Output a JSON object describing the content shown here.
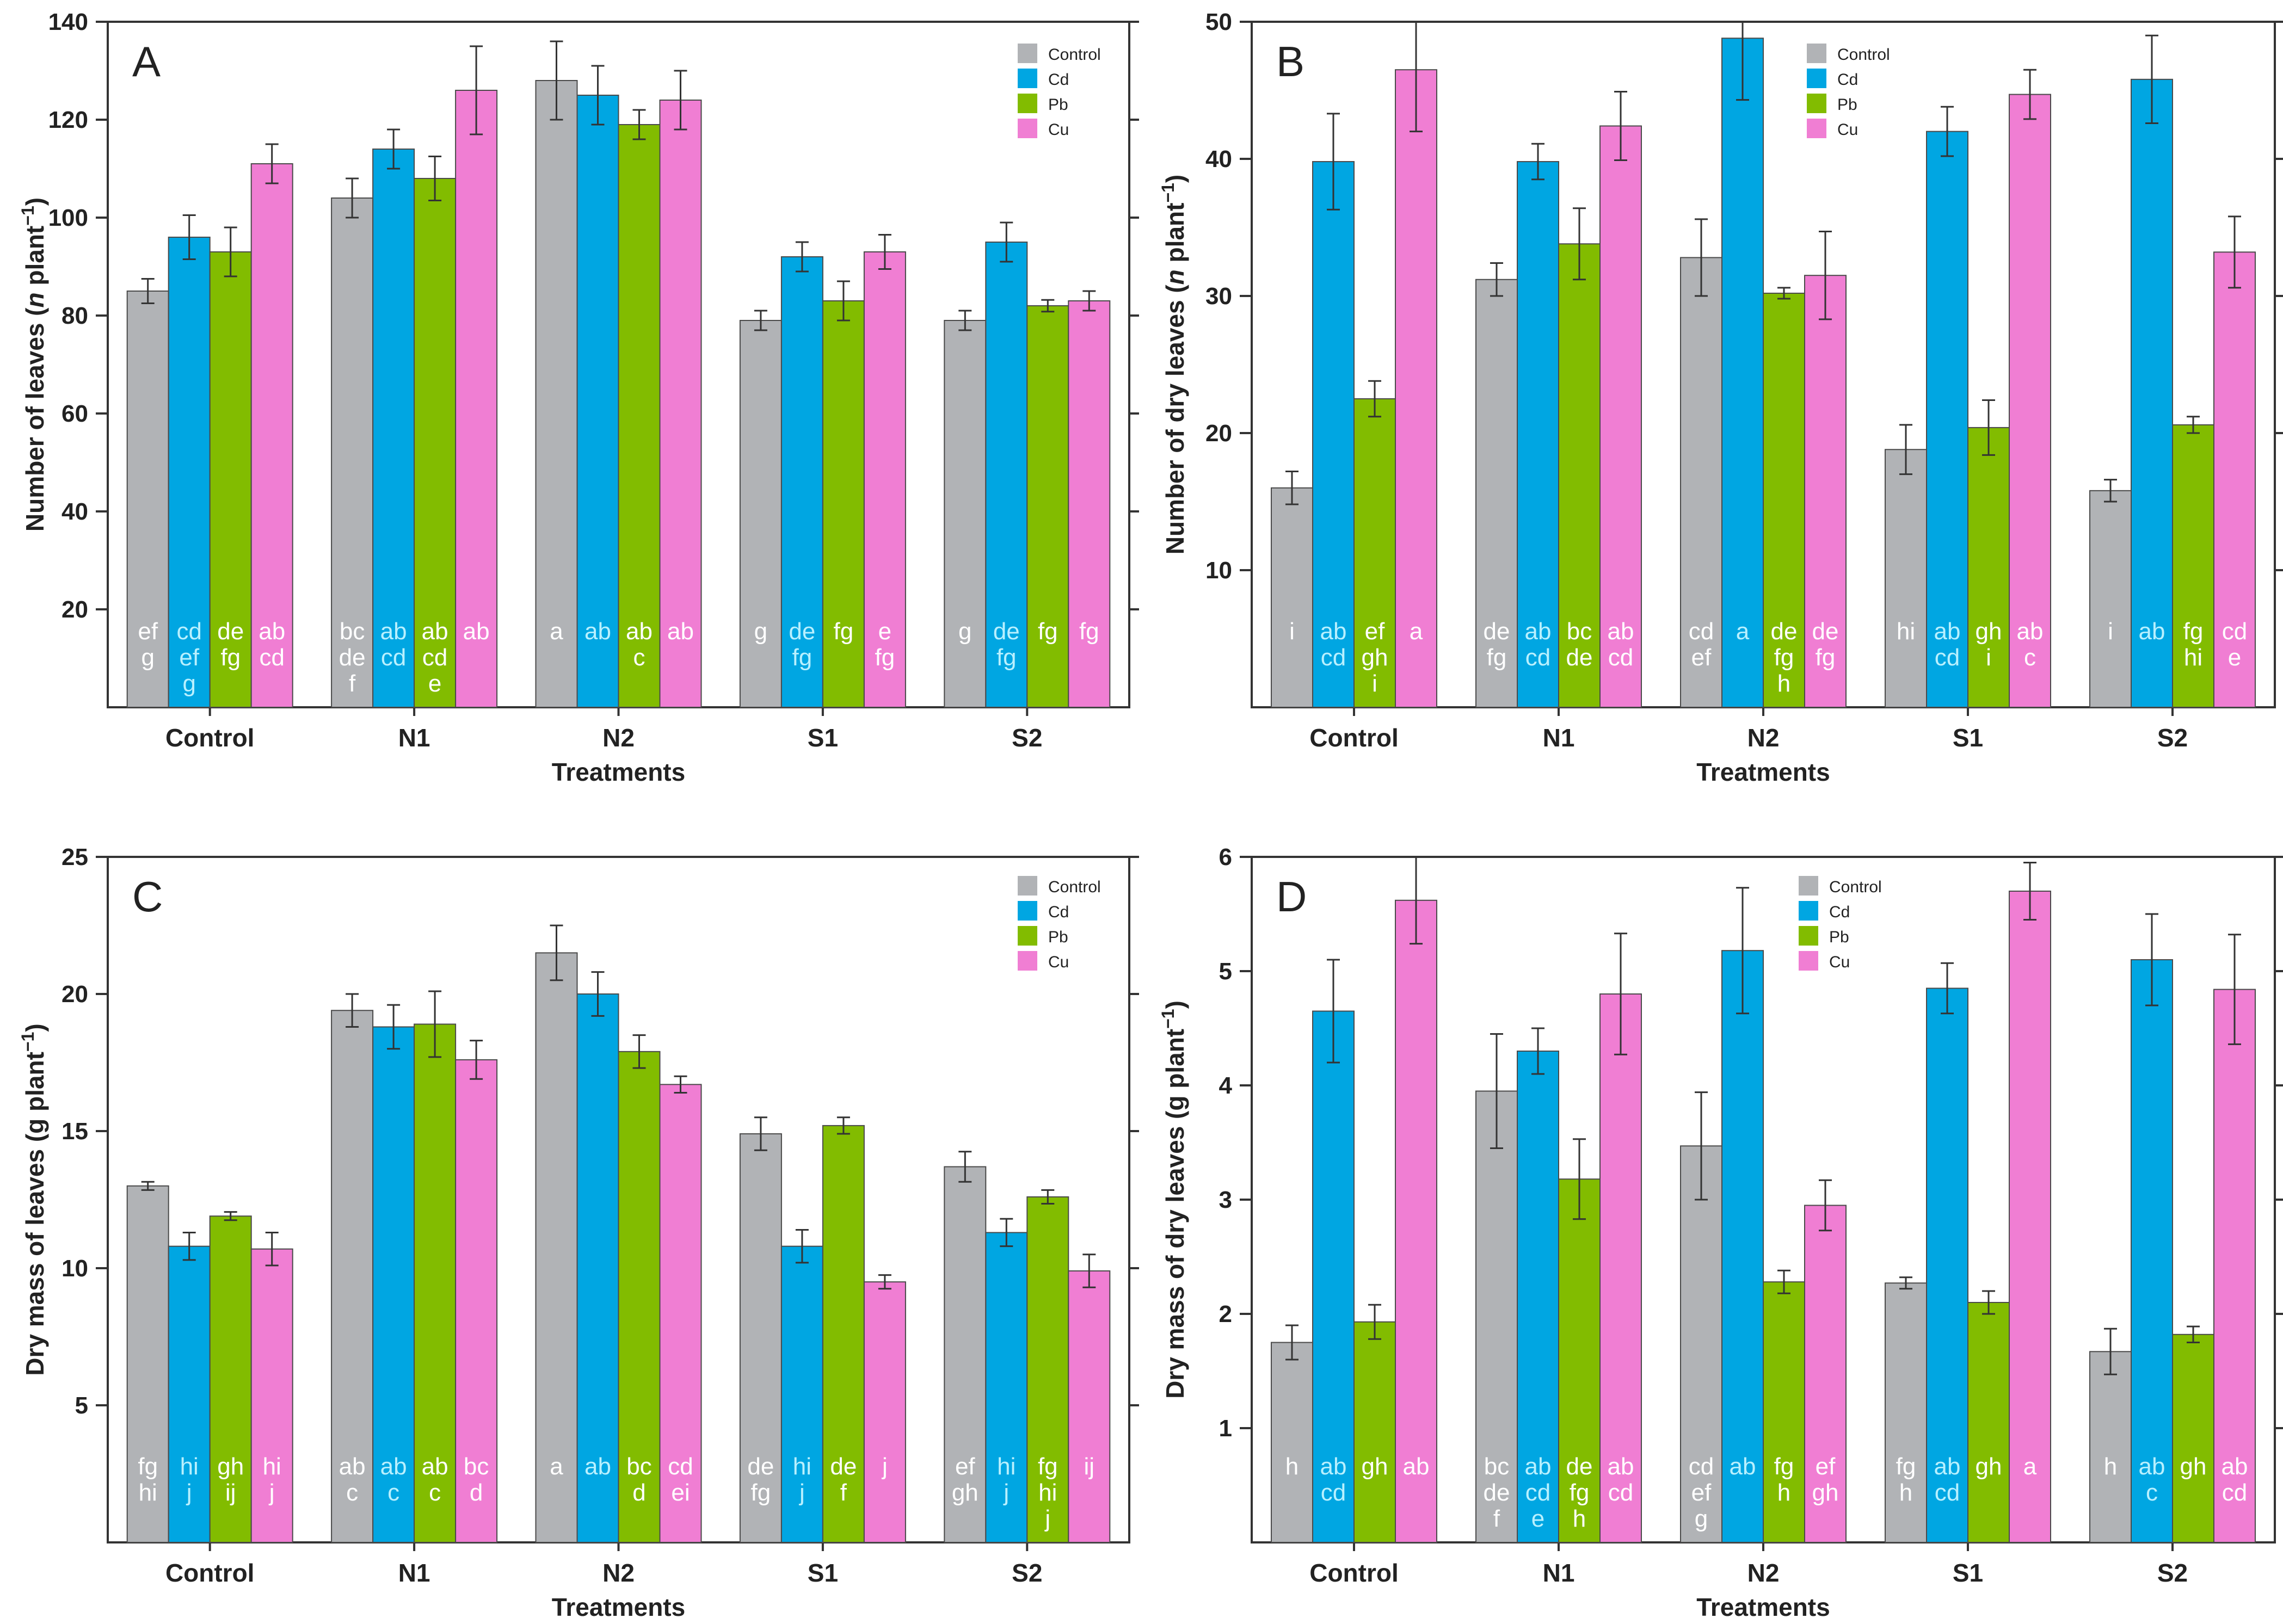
{
  "colors": {
    "Control": "#b1b3b6",
    "Cd": "#00a6e2",
    "Pb": "#82bc00",
    "Cu": "#f07ed3",
    "axis": "#333333"
  },
  "chart_data": [
    {
      "panel": "A",
      "type": "bar",
      "xlabel": "Treatments",
      "ylabel": [
        "Number of leaves (",
        "n",
        " plant",
        "−1",
        ")"
      ],
      "ylim": [
        0,
        140
      ],
      "yticks": [
        20,
        40,
        60,
        80,
        100,
        120,
        140
      ],
      "categories": [
        "Control",
        "N1",
        "N2",
        "S1",
        "S2"
      ],
      "legend": [
        "Control",
        "Cd",
        "Pb",
        "Cu"
      ],
      "series": [
        {
          "name": "Control",
          "values": [
            85,
            104,
            128,
            79,
            79
          ],
          "errors": [
            2.5,
            4,
            8,
            2,
            2
          ],
          "labels": [
            [
              "ef",
              "g"
            ],
            [
              "bc",
              "de",
              "f"
            ],
            [
              "a"
            ],
            [
              "g"
            ],
            [
              "g"
            ]
          ]
        },
        {
          "name": "Cd",
          "values": [
            96,
            114,
            125,
            92,
            95
          ],
          "errors": [
            4.5,
            4,
            6,
            3,
            4
          ],
          "labels": [
            [
              "cd",
              "ef",
              "g"
            ],
            [
              "ab",
              "cd"
            ],
            [
              "ab"
            ],
            [
              "de",
              "fg"
            ],
            [
              "de",
              "fg"
            ]
          ]
        },
        {
          "name": "Pb",
          "values": [
            93,
            108,
            119,
            83,
            82
          ],
          "errors": [
            5,
            4.5,
            3,
            4,
            1.2
          ],
          "labels": [
            [
              "de",
              "fg"
            ],
            [
              "ab",
              "cd",
              "e"
            ],
            [
              "ab",
              "c"
            ],
            [
              "fg"
            ],
            [
              "fg"
            ]
          ]
        },
        {
          "name": "Cu",
          "values": [
            111,
            126,
            124,
            93,
            83
          ],
          "errors": [
            4,
            9,
            6,
            3.5,
            2
          ],
          "labels": [
            [
              "ab",
              "cd"
            ],
            [
              "ab"
            ],
            [
              "ab"
            ],
            [
              "e",
              "fg"
            ],
            [
              "fg"
            ]
          ]
        }
      ]
    },
    {
      "panel": "B",
      "type": "bar",
      "xlabel": "Treatments",
      "ylabel": [
        "Number of dry leaves (",
        "n",
        " plant",
        "−1",
        ")"
      ],
      "ylim": [
        0,
        50
      ],
      "yticks": [
        10,
        20,
        30,
        40,
        50
      ],
      "categories": [
        "Control",
        "N1",
        "N2",
        "S1",
        "S2"
      ],
      "legend": [
        "Control",
        "Cd",
        "Pb",
        "Cu"
      ],
      "series": [
        {
          "name": "Control",
          "values": [
            16,
            31.2,
            32.8,
            18.8,
            15.8
          ],
          "errors": [
            1.2,
            1.2,
            2.8,
            1.8,
            0.8
          ],
          "labels": [
            [
              "i"
            ],
            [
              "de",
              "fg"
            ],
            [
              "cd",
              "ef"
            ],
            [
              "hi"
            ],
            [
              "i"
            ]
          ]
        },
        {
          "name": "Cd",
          "values": [
            39.8,
            39.8,
            48.8,
            42,
            45.8
          ],
          "errors": [
            3.5,
            1.3,
            4.5,
            1.8,
            3.2
          ],
          "labels": [
            [
              "ab",
              "cd"
            ],
            [
              "ab",
              "cd"
            ],
            [
              "a"
            ],
            [
              "ab",
              "cd"
            ],
            [
              "ab"
            ]
          ]
        },
        {
          "name": "Pb",
          "values": [
            22.5,
            33.8,
            30.2,
            20.4,
            20.6
          ],
          "errors": [
            1.3,
            2.6,
            0.4,
            2,
            0.6
          ],
          "labels": [
            [
              "ef",
              "gh",
              "i"
            ],
            [
              "bc",
              "de"
            ],
            [
              "de",
              "fg",
              "h"
            ],
            [
              "gh",
              "i"
            ],
            [
              "fg",
              "hi"
            ]
          ]
        },
        {
          "name": "Cu",
          "values": [
            46.5,
            42.4,
            31.5,
            44.7,
            33.2
          ],
          "errors": [
            4.5,
            2.5,
            3.2,
            1.8,
            2.6
          ],
          "labels": [
            [
              "a"
            ],
            [
              "ab",
              "cd"
            ],
            [
              "de",
              "fg"
            ],
            [
              "ab",
              "c"
            ],
            [
              "cd",
              "e"
            ]
          ]
        }
      ]
    },
    {
      "panel": "C",
      "type": "bar",
      "xlabel": "Treatments",
      "ylabel": [
        "Dry mass of leaves (g plant",
        "−1",
        ")"
      ],
      "ylim": [
        0,
        25
      ],
      "yticks": [
        5,
        10,
        15,
        20,
        25
      ],
      "categories": [
        "Control",
        "N1",
        "N2",
        "S1",
        "S2"
      ],
      "legend": [
        "Control",
        "Cd",
        "Pb",
        "Cu"
      ],
      "series": [
        {
          "name": "Control",
          "values": [
            13,
            19.4,
            21.5,
            14.9,
            13.7
          ],
          "errors": [
            0.15,
            0.6,
            1,
            0.6,
            0.55
          ],
          "labels": [
            [
              "fg",
              "hi"
            ],
            [
              "ab",
              "c"
            ],
            [
              "a"
            ],
            [
              "de",
              "fg"
            ],
            [
              "ef",
              "gh"
            ]
          ]
        },
        {
          "name": "Cd",
          "values": [
            10.8,
            18.8,
            20,
            10.8,
            11.3
          ],
          "errors": [
            0.5,
            0.8,
            0.8,
            0.6,
            0.5
          ],
          "labels": [
            [
              "hi",
              "j"
            ],
            [
              "ab",
              "c"
            ],
            [
              "ab"
            ],
            [
              "hi",
              "j"
            ],
            [
              "hi",
              "j"
            ]
          ]
        },
        {
          "name": "Pb",
          "values": [
            11.9,
            18.9,
            17.9,
            15.2,
            12.6
          ],
          "errors": [
            0.15,
            1.2,
            0.6,
            0.3,
            0.25
          ],
          "labels": [
            [
              "gh",
              "ij"
            ],
            [
              "ab",
              "c"
            ],
            [
              "bc",
              "d"
            ],
            [
              "de",
              "f"
            ],
            [
              "fg",
              "hi",
              "j"
            ]
          ]
        },
        {
          "name": "Cu",
          "values": [
            10.7,
            17.6,
            16.7,
            9.5,
            9.9
          ],
          "errors": [
            0.6,
            0.7,
            0.3,
            0.25,
            0.6
          ],
          "labels": [
            [
              "hi",
              "j"
            ],
            [
              "bc",
              "d"
            ],
            [
              "cd",
              "ei"
            ],
            [
              "j"
            ],
            [
              "ij"
            ]
          ]
        }
      ]
    },
    {
      "panel": "D",
      "type": "bar",
      "xlabel": "Treatments",
      "ylabel": [
        "Dry mass of dry leaves (g plant",
        "−1",
        ")"
      ],
      "ylim": [
        0,
        6
      ],
      "yticks": [
        1,
        2,
        3,
        4,
        5,
        6
      ],
      "categories": [
        "Control",
        "N1",
        "N2",
        "S1",
        "S2"
      ],
      "legend": [
        "Control",
        "Cd",
        "Pb",
        "Cu"
      ],
      "series": [
        {
          "name": "Control",
          "values": [
            1.75,
            3.95,
            3.47,
            2.27,
            1.67
          ],
          "errors": [
            0.15,
            0.5,
            0.47,
            0.05,
            0.2
          ],
          "labels": [
            [
              "h"
            ],
            [
              "bc",
              "de",
              "f"
            ],
            [
              "cd",
              "ef",
              "g"
            ],
            [
              "fg",
              "h"
            ],
            [
              "h"
            ]
          ]
        },
        {
          "name": "Cd",
          "values": [
            4.65,
            4.3,
            5.18,
            4.85,
            5.1
          ],
          "errors": [
            0.45,
            0.2,
            0.55,
            0.22,
            0.4
          ],
          "labels": [
            [
              "ab",
              "cd"
            ],
            [
              "ab",
              "cd",
              "e"
            ],
            [
              "ab"
            ],
            [
              "ab",
              "cd"
            ],
            [
              "ab",
              "c"
            ]
          ]
        },
        {
          "name": "Pb",
          "values": [
            1.93,
            3.18,
            2.28,
            2.1,
            1.82
          ],
          "errors": [
            0.15,
            0.35,
            0.1,
            0.1,
            0.07
          ],
          "labels": [
            [
              "gh"
            ],
            [
              "de",
              "fg",
              "h"
            ],
            [
              "fg",
              "h"
            ],
            [
              "gh"
            ],
            [
              "gh"
            ]
          ]
        },
        {
          "name": "Cu",
          "values": [
            5.62,
            4.8,
            2.95,
            5.7,
            4.84
          ],
          "errors": [
            0.38,
            0.53,
            0.22,
            0.25,
            0.48
          ],
          "labels": [
            [
              "ab"
            ],
            [
              "ab",
              "cd"
            ],
            [
              "ef",
              "gh"
            ],
            [
              "a"
            ],
            [
              "ab",
              "cd"
            ]
          ]
        }
      ]
    }
  ]
}
